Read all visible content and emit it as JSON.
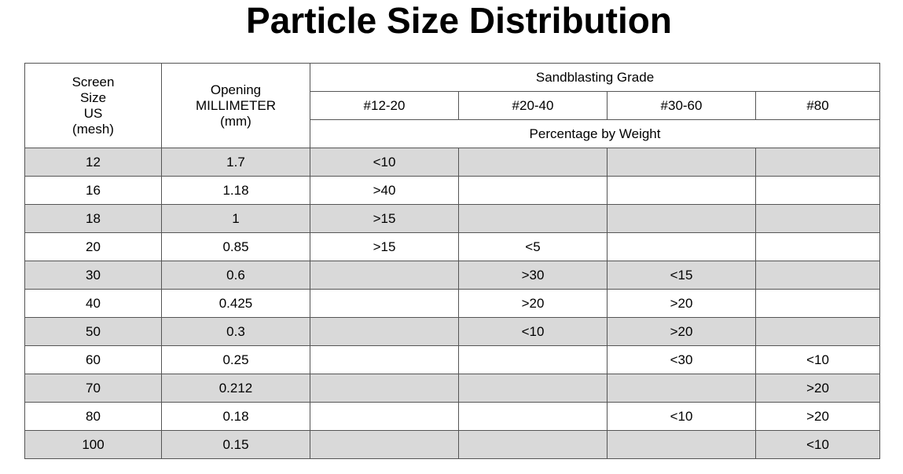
{
  "title": "Particle Size Distribution",
  "header": {
    "screen_size": [
      "Screen",
      "Size",
      "US",
      "(mesh)"
    ],
    "opening": [
      "Opening",
      "MILLIMETER",
      "(mm)"
    ],
    "grade_group": "Sandblasting Grade",
    "grades": [
      "#12-20",
      "#20-40",
      "#30-60",
      "#80"
    ],
    "percentage_label": "Percentage by Weight"
  },
  "rows": [
    {
      "mesh": "12",
      "mm": "1.7",
      "g1": "<10",
      "g2": "",
      "g3": "",
      "g4": ""
    },
    {
      "mesh": "16",
      "mm": "1.18",
      "g1": ">40",
      "g2": "",
      "g3": "",
      "g4": ""
    },
    {
      "mesh": "18",
      "mm": "1",
      "g1": ">15",
      "g2": "",
      "g3": "",
      "g4": ""
    },
    {
      "mesh": "20",
      "mm": "0.85",
      "g1": ">15",
      "g2": "<5",
      "g3": "",
      "g4": ""
    },
    {
      "mesh": "30",
      "mm": "0.6",
      "g1": "",
      "g2": ">30",
      "g3": "<15",
      "g4": ""
    },
    {
      "mesh": "40",
      "mm": "0.425",
      "g1": "",
      "g2": ">20",
      "g3": ">20",
      "g4": ""
    },
    {
      "mesh": "50",
      "mm": "0.3",
      "g1": "",
      "g2": "<10",
      "g3": ">20",
      "g4": ""
    },
    {
      "mesh": "60",
      "mm": "0.25",
      "g1": "",
      "g2": "",
      "g3": "<30",
      "g4": "<10"
    },
    {
      "mesh": "70",
      "mm": "0.212",
      "g1": "",
      "g2": "",
      "g3": "",
      "g4": ">20"
    },
    {
      "mesh": "80",
      "mm": "0.18",
      "g1": "",
      "g2": "",
      "g3": "<10",
      "g4": ">20"
    },
    {
      "mesh": "100",
      "mm": "0.15",
      "g1": "",
      "g2": "",
      "g3": "",
      "g4": "<10"
    }
  ],
  "colors": {
    "row_shade": "#d9d9d9",
    "row_plain": "#ffffff",
    "border": "#555555"
  }
}
